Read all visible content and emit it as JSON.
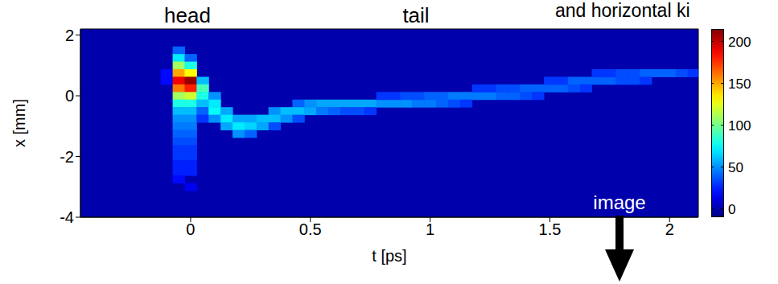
{
  "chart_data": {
    "type": "heatmap",
    "annotations": [
      "head",
      "tail",
      "and horizontal ki",
      "image"
    ],
    "x_label": "t [ps]",
    "y_label": "x [mm]",
    "xlim": [
      -0.46,
      2.12
    ],
    "xticks": [
      0,
      0.5,
      1,
      1.5,
      2
    ],
    "ylim": [
      -4,
      2.2
    ],
    "yticks": [
      -4,
      -2,
      0,
      2
    ],
    "colorbar": {
      "range": [
        -10,
        215
      ],
      "ticks": [
        0,
        50,
        100,
        150,
        200
      ]
    },
    "cells": [
      [
        -0.1,
        0.5,
        20
      ],
      [
        -0.1,
        0.75,
        20
      ],
      [
        -0.05,
        1.5,
        40
      ],
      [
        -0.05,
        1.25,
        70
      ],
      [
        -0.05,
        1.0,
        110
      ],
      [
        -0.05,
        0.75,
        150
      ],
      [
        -0.05,
        0.5,
        190
      ],
      [
        -0.05,
        0.25,
        160
      ],
      [
        -0.05,
        0,
        110
      ],
      [
        -0.05,
        -0.25,
        80
      ],
      [
        -0.05,
        -0.5,
        60
      ],
      [
        -0.05,
        -0.75,
        50
      ],
      [
        -0.05,
        -1.0,
        45
      ],
      [
        -0.05,
        -1.25,
        40
      ],
      [
        -0.05,
        -1.5,
        35
      ],
      [
        -0.05,
        -1.75,
        30
      ],
      [
        -0.05,
        -2.0,
        30
      ],
      [
        -0.05,
        -2.25,
        25
      ],
      [
        -0.05,
        -2.5,
        25
      ],
      [
        -0.05,
        -2.75,
        20
      ],
      [
        0,
        1.25,
        40
      ],
      [
        0,
        1.0,
        80
      ],
      [
        0,
        0.75,
        130
      ],
      [
        0,
        0.5,
        210
      ],
      [
        0,
        0.25,
        180
      ],
      [
        0,
        0,
        120
      ],
      [
        0,
        -0.25,
        80
      ],
      [
        0,
        -0.5,
        60
      ],
      [
        0,
        -0.75,
        50
      ],
      [
        0,
        -1.0,
        45
      ],
      [
        0,
        -1.25,
        40
      ],
      [
        0,
        -1.5,
        35
      ],
      [
        0,
        -1.75,
        30
      ],
      [
        0,
        -2.0,
        30
      ],
      [
        0,
        -2.25,
        25
      ],
      [
        0,
        -2.5,
        25
      ],
      [
        0,
        -3.0,
        15
      ],
      [
        0.05,
        0.5,
        60
      ],
      [
        0.05,
        0.25,
        90
      ],
      [
        0.05,
        0,
        80
      ],
      [
        0.05,
        -0.25,
        60
      ],
      [
        0.05,
        -0.5,
        40
      ],
      [
        0.05,
        -0.75,
        30
      ],
      [
        0.1,
        0,
        50
      ],
      [
        0.1,
        -0.25,
        70
      ],
      [
        0.1,
        -0.5,
        75
      ],
      [
        0.1,
        -0.75,
        50
      ],
      [
        0.15,
        -0.5,
        55
      ],
      [
        0.15,
        -0.75,
        70
      ],
      [
        0.15,
        -1.0,
        55
      ],
      [
        0.2,
        -0.75,
        55
      ],
      [
        0.2,
        -1.0,
        70
      ],
      [
        0.2,
        -1.25,
        50
      ],
      [
        0.25,
        -0.75,
        55
      ],
      [
        0.25,
        -1.0,
        65
      ],
      [
        0.25,
        -1.25,
        40
      ],
      [
        0.3,
        -0.75,
        60
      ],
      [
        0.3,
        -1.0,
        55
      ],
      [
        0.35,
        -0.5,
        50
      ],
      [
        0.35,
        -0.75,
        60
      ],
      [
        0.35,
        -1.0,
        35
      ],
      [
        0.4,
        -0.5,
        60
      ],
      [
        0.4,
        -0.75,
        50
      ],
      [
        0.45,
        -0.25,
        40
      ],
      [
        0.45,
        -0.5,
        60
      ],
      [
        0.45,
        -0.75,
        35
      ],
      [
        0.5,
        -0.25,
        50
      ],
      [
        0.5,
        -0.5,
        55
      ],
      [
        0.55,
        -0.25,
        55
      ],
      [
        0.55,
        -0.5,
        45
      ],
      [
        0.6,
        -0.25,
        55
      ],
      [
        0.6,
        -0.5,
        40
      ],
      [
        0.65,
        -0.25,
        55
      ],
      [
        0.65,
        -0.5,
        35
      ],
      [
        0.7,
        -0.25,
        55
      ],
      [
        0.7,
        -0.5,
        35
      ],
      [
        0.75,
        -0.25,
        55
      ],
      [
        0.75,
        -0.5,
        30
      ],
      [
        0.8,
        -0.25,
        50
      ],
      [
        0.8,
        0,
        30
      ],
      [
        0.85,
        -0.25,
        50
      ],
      [
        0.85,
        0,
        30
      ],
      [
        0.9,
        -0.25,
        50
      ],
      [
        0.9,
        0,
        35
      ],
      [
        0.95,
        -0.25,
        45
      ],
      [
        0.95,
        0,
        35
      ],
      [
        1.0,
        -0.25,
        45
      ],
      [
        1.0,
        0,
        40
      ],
      [
        1.05,
        -0.25,
        40
      ],
      [
        1.05,
        0,
        40
      ],
      [
        1.1,
        0,
        45
      ],
      [
        1.1,
        -0.25,
        35
      ],
      [
        1.15,
        0,
        45
      ],
      [
        1.15,
        -0.25,
        30
      ],
      [
        1.2,
        0,
        45
      ],
      [
        1.2,
        0.25,
        30
      ],
      [
        1.25,
        0,
        45
      ],
      [
        1.25,
        0.25,
        30
      ],
      [
        1.3,
        0,
        40
      ],
      [
        1.3,
        0.25,
        35
      ],
      [
        1.35,
        0,
        40
      ],
      [
        1.35,
        0.25,
        35
      ],
      [
        1.4,
        0.25,
        40
      ],
      [
        1.4,
        0,
        35
      ],
      [
        1.45,
        0.25,
        40
      ],
      [
        1.45,
        0,
        30
      ],
      [
        1.5,
        0.25,
        40
      ],
      [
        1.5,
        0.5,
        30
      ],
      [
        1.55,
        0.25,
        40
      ],
      [
        1.55,
        0.5,
        30
      ],
      [
        1.6,
        0.5,
        40
      ],
      [
        1.6,
        0.25,
        35
      ],
      [
        1.65,
        0.5,
        40
      ],
      [
        1.65,
        0.25,
        30
      ],
      [
        1.7,
        0.5,
        40
      ],
      [
        1.7,
        0.75,
        30
      ],
      [
        1.75,
        0.5,
        40
      ],
      [
        1.75,
        0.75,
        30
      ],
      [
        1.8,
        0.5,
        35
      ],
      [
        1.8,
        0.75,
        35
      ],
      [
        1.85,
        0.5,
        35
      ],
      [
        1.85,
        0.75,
        35
      ],
      [
        1.9,
        0.75,
        40
      ],
      [
        1.9,
        0.5,
        30
      ],
      [
        1.95,
        0.75,
        40
      ],
      [
        2.0,
        0.75,
        40
      ],
      [
        2.05,
        0.75,
        35
      ],
      [
        2.1,
        0.75,
        30
      ]
    ]
  }
}
